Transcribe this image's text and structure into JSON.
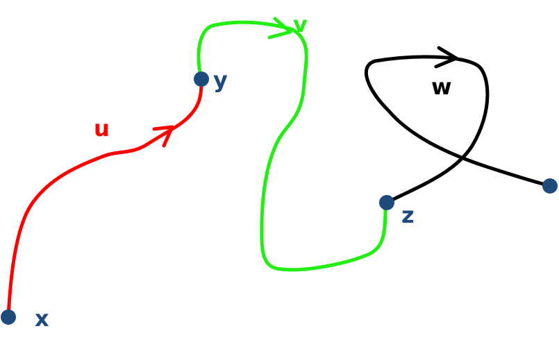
{
  "colors": {
    "point": "#1f4a7c",
    "path_u": "#ff0000",
    "path_v": "#22ee11",
    "path_w": "#000000",
    "background": "#ffffff"
  },
  "points": {
    "x": "x",
    "y": "y",
    "z": "z"
  },
  "paths": {
    "u": "u",
    "v": "v",
    "w": "w"
  }
}
